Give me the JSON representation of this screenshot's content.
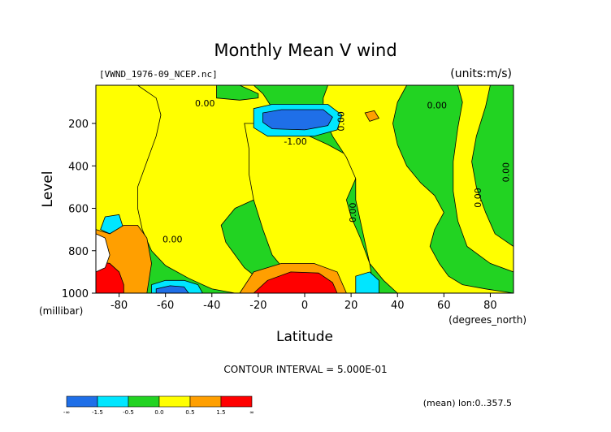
{
  "chart_data": {
    "type": "heatmap",
    "title": "Monthly Mean V wind",
    "file_label": "[VWND_1976-09_NCEP.nc]",
    "units_label": "(units:m/s)",
    "ylabel": "Level",
    "yunit": "(millibar)",
    "xlabel": "Latitude",
    "xunit": "(degrees_north)",
    "xlim": [
      -90,
      90
    ],
    "ylim": [
      1000,
      20
    ],
    "x_ticks": [
      -80,
      -60,
      -40,
      -20,
      0,
      20,
      40,
      60,
      80
    ],
    "y_ticks": [
      200,
      400,
      600,
      800,
      1000
    ],
    "contour_interval_text": "CONTOUR INTERVAL = 5.000E-01",
    "footer_text": "(mean) lon:0..357.5",
    "contour_labels": [
      {
        "text": "0.00",
        "x": -43,
        "y": 120,
        "rotate": 0
      },
      {
        "text": "0.00",
        "x": 17,
        "y": 190,
        "rotate": -90
      },
      {
        "text": "0.00",
        "x": 57,
        "y": 130,
        "rotate": 0
      },
      {
        "text": "-1.00",
        "x": -4,
        "y": 300,
        "rotate": 0
      },
      {
        "text": "0.00",
        "x": -57,
        "y": 760,
        "rotate": 0
      },
      {
        "text": "0.00",
        "x": 22,
        "y": 620,
        "rotate": -90
      },
      {
        "text": "0.00",
        "x": 76,
        "y": 550,
        "rotate": -90
      },
      {
        "text": "0.00",
        "x": 88,
        "y": 430,
        "rotate": -90
      }
    ],
    "colorbar": {
      "colors": [
        "#1f6fe8",
        "#00e6ff",
        "#22d322",
        "#ffff00",
        "#ff9f00",
        "#ff0000"
      ],
      "labels": [
        "-∞",
        "-1.5",
        "-0.5",
        "0.0",
        "0.5",
        "1.5",
        "∞"
      ]
    },
    "regions": [
      {
        "level": "green",
        "color": "#22d322",
        "points": [
          [
            -90,
            20
          ],
          [
            90,
            20
          ],
          [
            90,
            1000
          ],
          [
            -90,
            1000
          ]
        ]
      },
      {
        "level": "yellow",
        "color": "#ffff00",
        "points": [
          [
            -90,
            20
          ],
          [
            -66,
            20
          ],
          [
            -60,
            60
          ],
          [
            -56,
            120
          ],
          [
            -52,
            300
          ],
          [
            -50,
            480
          ],
          [
            -54,
            580
          ],
          [
            -62,
            640
          ],
          [
            -68,
            700
          ],
          [
            -76,
            780
          ],
          [
            -90,
            800
          ]
        ]
      },
      {
        "level": "yellow",
        "color": "#ffff00",
        "points": [
          [
            -72,
            20
          ],
          [
            -38,
            20
          ],
          [
            -38,
            80
          ],
          [
            -28,
            90
          ],
          [
            -20,
            80
          ],
          [
            -20,
            60
          ],
          [
            -28,
            20
          ],
          [
            -22,
            20
          ],
          [
            -18,
            60
          ],
          [
            -12,
            160
          ],
          [
            -14,
            380
          ],
          [
            -16,
            500
          ],
          [
            -22,
            560
          ],
          [
            -30,
            600
          ],
          [
            -36,
            680
          ],
          [
            -34,
            760
          ],
          [
            -30,
            820
          ],
          [
            -26,
            880
          ],
          [
            -18,
            950
          ],
          [
            -20,
            1000
          ],
          [
            -30,
            1000
          ],
          [
            -40,
            980
          ],
          [
            -50,
            930
          ],
          [
            -60,
            870
          ],
          [
            -66,
            800
          ],
          [
            -70,
            700
          ],
          [
            -72,
            600
          ],
          [
            -72,
            500
          ],
          [
            -68,
            380
          ],
          [
            -64,
            260
          ],
          [
            -62,
            160
          ],
          [
            -64,
            80
          ]
        ]
      },
      {
        "level": "yellow",
        "color": "#ffff00",
        "points": [
          [
            -26,
            200
          ],
          [
            -14,
            200
          ],
          [
            -4,
            230
          ],
          [
            10,
            300
          ],
          [
            20,
            360
          ],
          [
            22,
            460
          ],
          [
            18,
            560
          ],
          [
            20,
            640
          ],
          [
            24,
            740
          ],
          [
            28,
            860
          ],
          [
            30,
            1000
          ],
          [
            8,
            1000
          ],
          [
            0,
            950
          ],
          [
            -8,
            900
          ],
          [
            -14,
            820
          ],
          [
            -18,
            700
          ],
          [
            -22,
            560
          ],
          [
            -24,
            440
          ],
          [
            -24,
            320
          ]
        ]
      },
      {
        "level": "yellow",
        "color": "#ffff00",
        "points": [
          [
            10,
            20
          ],
          [
            44,
            20
          ],
          [
            40,
            100
          ],
          [
            38,
            200
          ],
          [
            40,
            300
          ],
          [
            44,
            400
          ],
          [
            50,
            480
          ],
          [
            56,
            540
          ],
          [
            60,
            620
          ],
          [
            56,
            700
          ],
          [
            54,
            780
          ],
          [
            58,
            860
          ],
          [
            62,
            920
          ],
          [
            68,
            960
          ],
          [
            78,
            980
          ],
          [
            90,
            1000
          ],
          [
            40,
            1000
          ],
          [
            34,
            940
          ],
          [
            28,
            860
          ],
          [
            26,
            760
          ],
          [
            24,
            660
          ],
          [
            22,
            560
          ],
          [
            22,
            460
          ],
          [
            18,
            360
          ],
          [
            12,
            260
          ],
          [
            8,
            160
          ],
          [
            8,
            80
          ]
        ]
      },
      {
        "level": "yellow",
        "color": "#ffff00",
        "points": [
          [
            66,
            20
          ],
          [
            80,
            20
          ],
          [
            78,
            120
          ],
          [
            74,
            260
          ],
          [
            72,
            380
          ],
          [
            74,
            500
          ],
          [
            78,
            620
          ],
          [
            82,
            720
          ],
          [
            90,
            780
          ],
          [
            90,
            900
          ],
          [
            80,
            860
          ],
          [
            70,
            780
          ],
          [
            66,
            660
          ],
          [
            64,
            520
          ],
          [
            64,
            380
          ],
          [
            66,
            220
          ],
          [
            68,
            100
          ]
        ]
      },
      {
        "level": "blue-light",
        "color": "#00e6ff",
        "points": [
          [
            -22,
            130
          ],
          [
            -14,
            110
          ],
          [
            10,
            110
          ],
          [
            16,
            160
          ],
          [
            14,
            230
          ],
          [
            4,
            260
          ],
          [
            -16,
            260
          ],
          [
            -22,
            220
          ]
        ]
      },
      {
        "level": "blue",
        "color": "#1f6fe8",
        "points": [
          [
            -18,
            150
          ],
          [
            -10,
            135
          ],
          [
            8,
            135
          ],
          [
            12,
            170
          ],
          [
            10,
            210
          ],
          [
            0,
            230
          ],
          [
            -14,
            225
          ],
          [
            -18,
            195
          ]
        ]
      },
      {
        "level": "blue-light",
        "color": "#00e6ff",
        "points": [
          [
            -66,
            960
          ],
          [
            -60,
            940
          ],
          [
            -52,
            940
          ],
          [
            -46,
            960
          ],
          [
            -44,
            1000
          ],
          [
            -66,
            1000
          ]
        ]
      },
      {
        "level": "blue",
        "color": "#1f6fe8",
        "points": [
          [
            -64,
            980
          ],
          [
            -58,
            965
          ],
          [
            -52,
            970
          ],
          [
            -50,
            1000
          ],
          [
            -64,
            1000
          ]
        ]
      },
      {
        "level": "blue-light",
        "color": "#00e6ff",
        "points": [
          [
            22,
            920
          ],
          [
            28,
            900
          ],
          [
            32,
            940
          ],
          [
            32,
            1000
          ],
          [
            22,
            1000
          ]
        ]
      },
      {
        "level": "blue-light",
        "color": "#00e6ff",
        "points": [
          [
            -86,
            640
          ],
          [
            -80,
            630
          ],
          [
            -78,
            700
          ],
          [
            -84,
            720
          ],
          [
            -88,
            700
          ]
        ]
      },
      {
        "level": "orange",
        "color": "#ff9f00",
        "points": [
          [
            -90,
            700
          ],
          [
            -84,
            720
          ],
          [
            -78,
            680
          ],
          [
            -72,
            680
          ],
          [
            -68,
            740
          ],
          [
            -66,
            860
          ],
          [
            -68,
            1000
          ],
          [
            -90,
            1000
          ]
        ]
      },
      {
        "level": "red",
        "color": "#ff0000",
        "points": [
          [
            -90,
            850
          ],
          [
            -84,
            860
          ],
          [
            -80,
            900
          ],
          [
            -78,
            960
          ],
          [
            -78,
            1000
          ],
          [
            -90,
            1000
          ]
        ]
      },
      {
        "level": "orange",
        "color": "#ff9f00",
        "points": [
          [
            -28,
            1000
          ],
          [
            -22,
            900
          ],
          [
            -10,
            860
          ],
          [
            4,
            860
          ],
          [
            14,
            900
          ],
          [
            18,
            1000
          ]
        ]
      },
      {
        "level": "red",
        "color": "#ff0000",
        "points": [
          [
            -22,
            1000
          ],
          [
            -16,
            940
          ],
          [
            -6,
            900
          ],
          [
            6,
            905
          ],
          [
            12,
            950
          ],
          [
            14,
            1000
          ]
        ]
      },
      {
        "level": "orange",
        "color": "#ff9f00",
        "points": [
          [
            26,
            150
          ],
          [
            30,
            140
          ],
          [
            32,
            175
          ],
          [
            28,
            190
          ]
        ]
      },
      {
        "level": "white",
        "color": "#ffffff",
        "points": [
          [
            -90,
            720
          ],
          [
            -86,
            740
          ],
          [
            -84,
            820
          ],
          [
            -86,
            880
          ],
          [
            -90,
            900
          ]
        ]
      }
    ]
  }
}
